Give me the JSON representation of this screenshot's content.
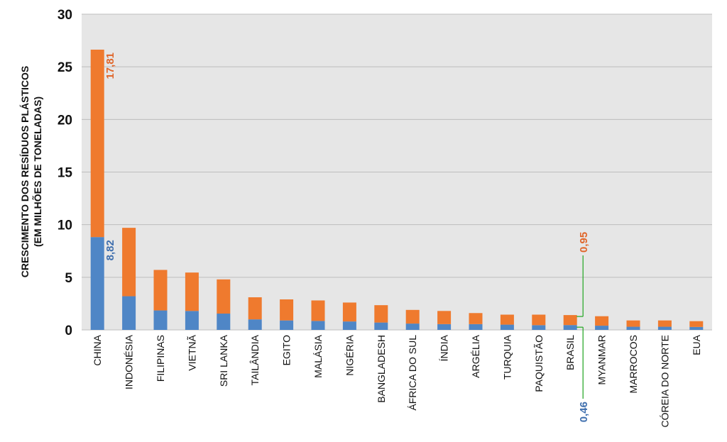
{
  "chart_data": {
    "type": "bar",
    "stacked": true,
    "ylabel_line1": "CRESCIMENTO DOS RESÍDUOS PLÁSTICOS",
    "ylabel_line2": "(EM MILHÕES DE TONELADAS)",
    "ylim": [
      0,
      30
    ],
    "yticks": [
      "0",
      "5",
      "10",
      "15",
      "20",
      "25",
      "30"
    ],
    "grid": true,
    "categories": [
      "CHINA",
      "INDONÉSIA",
      "FILIPINAS",
      "VIETNÃ",
      "SRI LANKA",
      "TAILÂNDIA",
      "EGITO",
      "MALÁSIA",
      "NIGÉRIA",
      "BANGLADESH",
      "ÁFRICA DO SUL",
      "ÍNDIA",
      "ARGÉLIA",
      "TURQUIA",
      "PAQUISTÃO",
      "BRASIL",
      "MYANMAR",
      "MARROCOS",
      "CÓREIA DO NORTE",
      "EUA"
    ],
    "highlight_category": "BRASIL",
    "series": [
      {
        "values": [
          8.82,
          3.2,
          1.85,
          1.8,
          1.55,
          1.0,
          0.9,
          0.85,
          0.8,
          0.7,
          0.6,
          0.55,
          0.55,
          0.5,
          0.45,
          0.46,
          0.4,
          0.3,
          0.3,
          0.28
        ]
      },
      {
        "values": [
          17.81,
          6.5,
          3.85,
          3.65,
          3.25,
          2.1,
          2.0,
          1.95,
          1.8,
          1.65,
          1.3,
          1.25,
          1.05,
          0.95,
          1.0,
          0.95,
          0.9,
          0.6,
          0.6,
          0.55
        ]
      }
    ],
    "annotations": {
      "china_top": "17,81",
      "china_bottom": "8,82",
      "brasil_top": "0,95",
      "brasil_bottom": "0,46"
    },
    "colors": {
      "series0": "#4f86c6",
      "series1": "#ef7a2e",
      "highlight": "#2eaa2e",
      "grid": "#bdbdbd",
      "background": "#e6e6e6",
      "annotation_top": "#e0662a",
      "annotation_bottom": "#3f6fae"
    }
  }
}
